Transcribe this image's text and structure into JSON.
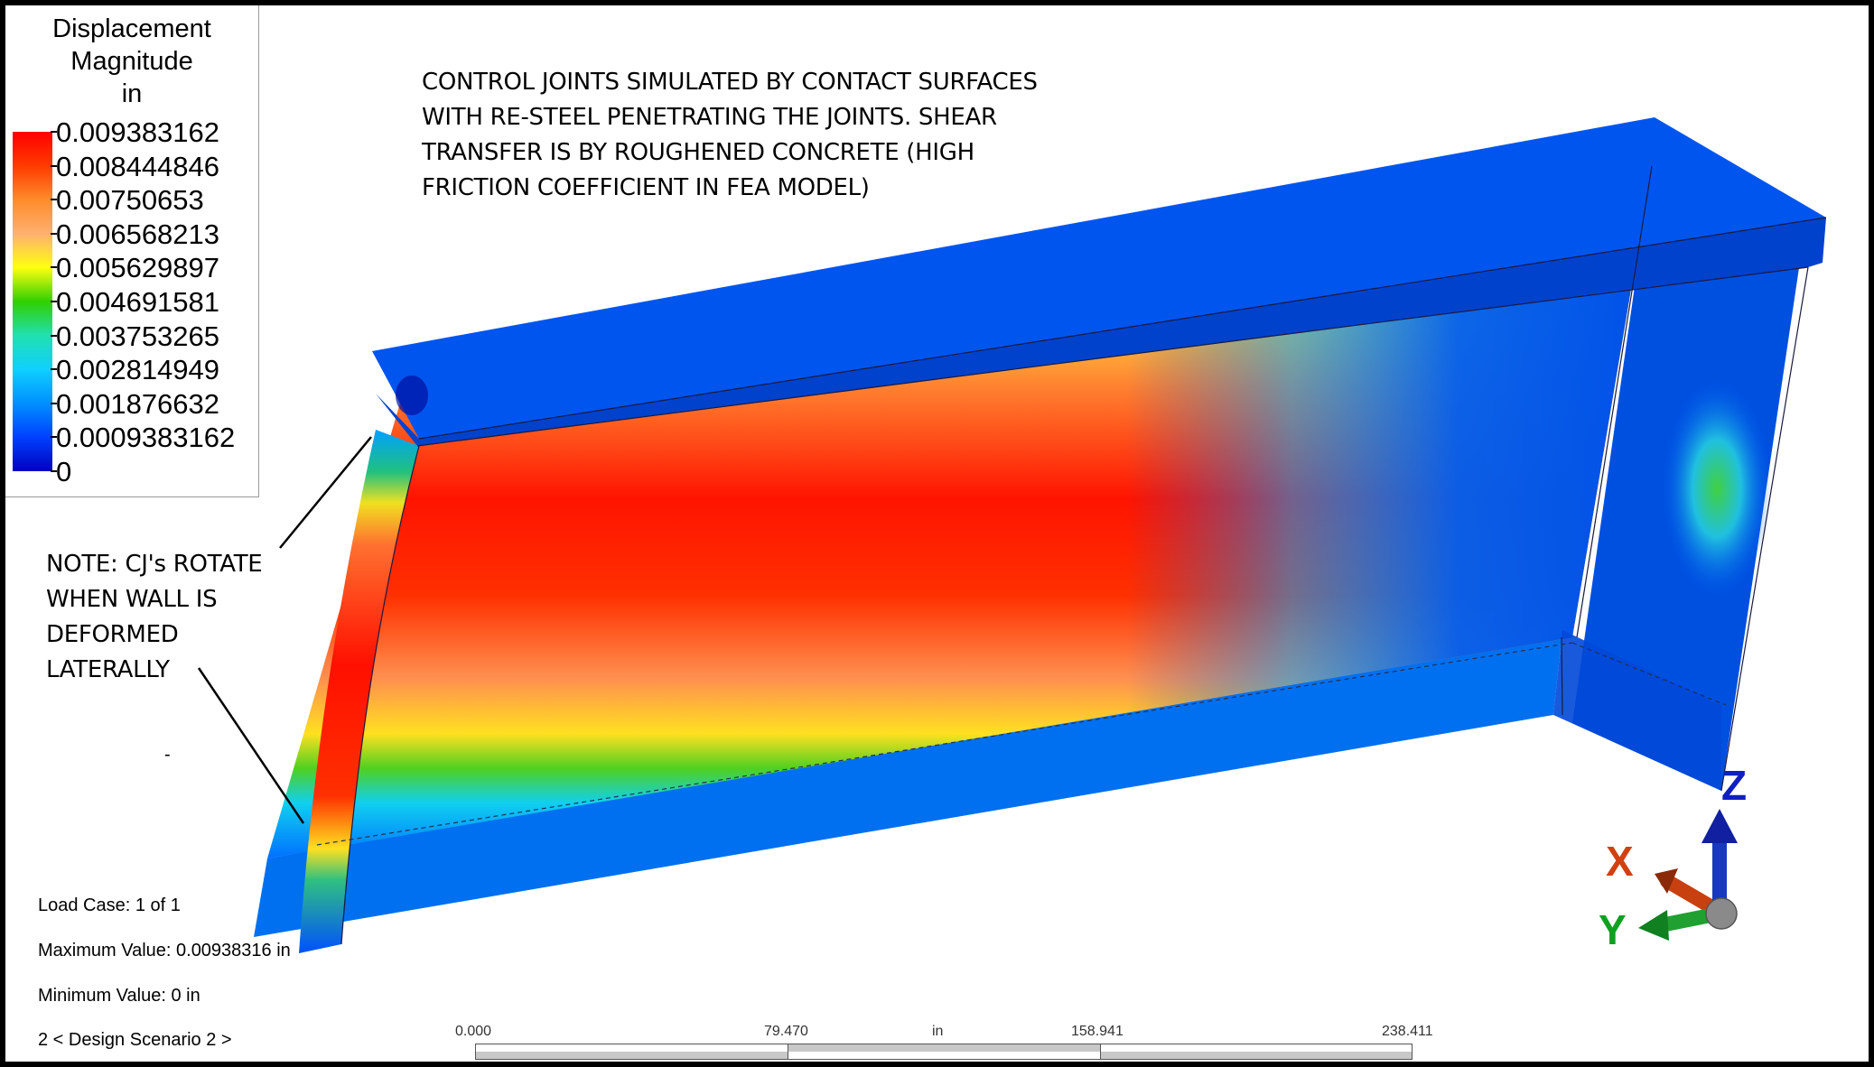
{
  "legend": {
    "title_lines": [
      "Displacement",
      "Magnitude",
      "in"
    ],
    "values": [
      "0.009383162",
      "0.008444846",
      "0.00750653",
      "0.006568213",
      "0.005629897",
      "0.004691581",
      "0.003753265",
      "0.002814949",
      "0.001876632",
      "0.0009383162",
      "0"
    ],
    "colormap": [
      "#ff0000",
      "#ff8c2a",
      "#ffff10",
      "#30d000",
      "#10d0ff",
      "#0040ff",
      "#0000c0"
    ]
  },
  "annotations": {
    "main_note": [
      "CONTROL JOINTS  SIMULATED  BY CONTACT SURFACES",
      "WITH RE-STEEL PENETRATING THE JOINTS.  SHEAR",
      "TRANSFER IS BY ROUGHENED CONCRETE (HIGH",
      "FRICTION COEFFICIENT IN FEA MODEL)"
    ],
    "side_note": [
      "NOTE: CJ's ROTATE",
      "WHEN WALL IS",
      "DEFORMED",
      "LATERALLY"
    ],
    "stray_mark": "-"
  },
  "info": {
    "load_case": "Load Case:  1 of 1",
    "max_value": "Maximum Value: 0.00938316 in",
    "min_value": "Minimum Value: 0 in",
    "scenario": "2 < Design Scenario 2 >"
  },
  "scale_bar": {
    "ticks": [
      "0.000",
      "79.470",
      "158.941",
      "238.411"
    ],
    "unit": "in"
  },
  "triad": {
    "x_label": "X",
    "y_label": "Y",
    "z_label": "Z",
    "x_color": "#d04010",
    "y_color": "#10a020",
    "z_color": "#1020c0"
  }
}
